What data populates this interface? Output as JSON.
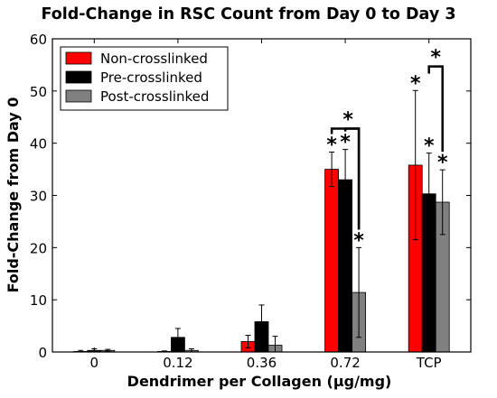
{
  "chart_data": {
    "type": "bar",
    "title": "Fold-Change in RSC Count from Day 0 to Day 3",
    "xlabel": "Dendrimer per Collagen (μg/mg)",
    "ylabel": "Fold-Change from Day 0",
    "categories": [
      "0",
      "0.12",
      "0.36",
      "0.72",
      "TCP"
    ],
    "ylim": [
      0,
      60
    ],
    "yticks": [
      "0",
      "10",
      "20",
      "30",
      "40",
      "50",
      "60"
    ],
    "legend_position": "top-left",
    "series": [
      {
        "name": "Non-crosslinked",
        "color": "#ff0000",
        "values": [
          0.1,
          0.1,
          2.0,
          35.0,
          35.8
        ],
        "errors": [
          0.2,
          0.1,
          1.2,
          3.3,
          14.3
        ]
      },
      {
        "name": "Pre-crosslinked",
        "color": "#000000",
        "values": [
          0.3,
          2.8,
          5.8,
          33.0,
          30.3
        ],
        "errors": [
          0.3,
          1.7,
          3.2,
          5.8,
          7.8
        ]
      },
      {
        "name": "Post-crosslinked",
        "color": "#808080",
        "values": [
          0.3,
          0.3,
          1.3,
          11.4,
          28.7
        ],
        "errors": [
          0.2,
          0.3,
          1.7,
          8.6,
          6.2
        ]
      }
    ],
    "significance": {
      "symbol": "*",
      "bars": [
        [
          3,
          0
        ],
        [
          3,
          1
        ],
        [
          3,
          2
        ],
        [
          4,
          0
        ],
        [
          4,
          1
        ],
        [
          4,
          2
        ]
      ],
      "brackets": [
        {
          "category": 3,
          "from": 0,
          "to": 2,
          "level": 42.8
        },
        {
          "category": 3,
          "from": 1,
          "to": 2,
          "level": 42.8
        },
        {
          "category": 4,
          "from": 1,
          "to": 2,
          "level": 54.7
        }
      ]
    }
  }
}
